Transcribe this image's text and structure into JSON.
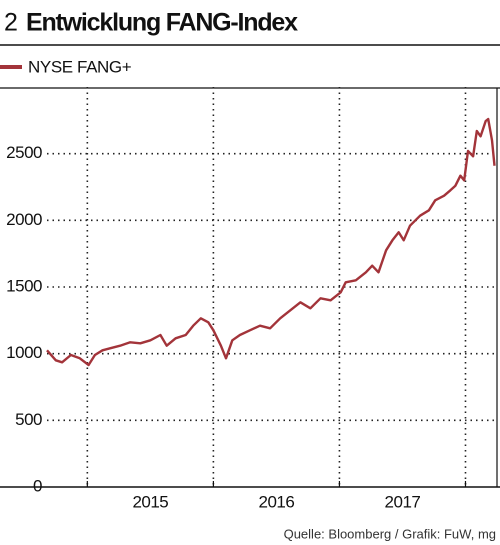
{
  "chart_data": {
    "type": "line",
    "number": "2",
    "title": "Entwicklung FANG-Index",
    "source": "Quelle: Bloomberg / Grafik: FuW, mg",
    "x": [
      2014.68,
      2014.75,
      2014.8,
      2014.87,
      2014.94,
      2015.01,
      2015.06,
      2015.12,
      2015.18,
      2015.26,
      2015.34,
      2015.42,
      2015.5,
      2015.58,
      2015.63,
      2015.7,
      2015.78,
      2015.84,
      2015.9,
      2015.96,
      2016.0,
      2016.06,
      2016.1,
      2016.15,
      2016.21,
      2016.29,
      2016.37,
      2016.45,
      2016.53,
      2016.61,
      2016.69,
      2016.77,
      2016.85,
      2016.93,
      2017.01,
      2017.05,
      2017.13,
      2017.21,
      2017.26,
      2017.31,
      2017.37,
      2017.42,
      2017.47,
      2017.51,
      2017.56,
      2017.64,
      2017.71,
      2017.76,
      2017.83,
      2017.88,
      2017.92,
      2017.96,
      2017.99,
      2018.02,
      2018.06,
      2018.09,
      2018.12,
      2018.16,
      2018.18,
      2018.21,
      2018.23
    ],
    "series": [
      {
        "name": "NYSE FANG+",
        "color": "#a3343a",
        "values": [
          1025,
          950,
          935,
          990,
          965,
          915,
          990,
          1025,
          1040,
          1060,
          1085,
          1078,
          1100,
          1140,
          1060,
          1115,
          1140,
          1210,
          1265,
          1235,
          1175,
          1060,
          965,
          1100,
          1140,
          1175,
          1210,
          1190,
          1265,
          1325,
          1385,
          1340,
          1415,
          1400,
          1460,
          1535,
          1550,
          1610,
          1660,
          1610,
          1775,
          1850,
          1910,
          1850,
          1960,
          2035,
          2075,
          2150,
          2185,
          2225,
          2260,
          2335,
          2300,
          2520,
          2480,
          2670,
          2630,
          2745,
          2760,
          2600,
          2410
        ]
      }
    ],
    "xlim": [
      2014.68,
      2018.25
    ],
    "xticks": [
      {
        "value": 2015.5,
        "label": "2015"
      },
      {
        "value": 2016.5,
        "label": "2016"
      },
      {
        "value": 2017.5,
        "label": "2017"
      }
    ],
    "xgrid": [
      2015,
      2016,
      2017,
      2018
    ],
    "ylim": [
      0,
      3000
    ],
    "yticks": [
      0,
      500,
      1000,
      1500,
      2000,
      2500
    ],
    "grid": true
  }
}
